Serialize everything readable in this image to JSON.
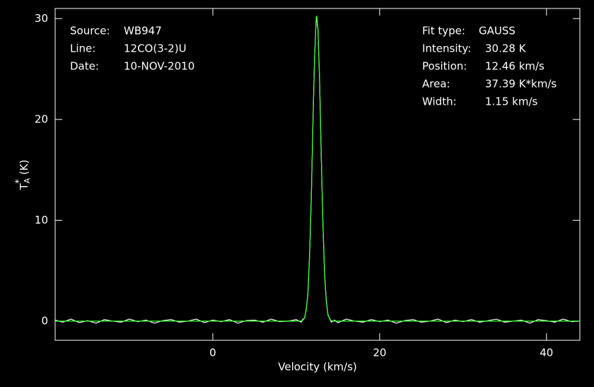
{
  "chart_data": {
    "type": "line",
    "xlabel": "Velocity (km/s)",
    "ylabel": {
      "base": "T",
      "sub": "A",
      "sup": "*",
      "unit": "(K)"
    },
    "xlim": [
      -18.9,
      44
    ],
    "ylim": [
      -1.9,
      31
    ],
    "xticks": [
      0,
      20,
      40
    ],
    "yticks": [
      0,
      10,
      20,
      30
    ],
    "annotations_left": [
      [
        "Source:",
        "WB947"
      ],
      [
        "Line:",
        "12CO(3-2)U"
      ],
      [
        "Date:",
        "10-NOV-2010"
      ]
    ],
    "annotations_right": [
      [
        "Fit type:",
        "GAUSS"
      ],
      [
        "Intensity:",
        "30.28 K"
      ],
      [
        "Position:",
        "12.46 km/s"
      ],
      [
        "Area:",
        "37.39 K*km/s"
      ],
      [
        "Width:",
        "1.15 km/s"
      ]
    ],
    "series": [
      {
        "color": "#ffffff",
        "x": [
          -18.9,
          -18,
          -17,
          -16,
          -15,
          -14,
          -13,
          -12,
          -11,
          -10,
          -9,
          -8,
          -7,
          -6,
          -5,
          -4,
          -3,
          -2,
          -1,
          0,
          1,
          2,
          3,
          4,
          5,
          6,
          7,
          8,
          9,
          10,
          10.6,
          10.8,
          11.0,
          11.2,
          11.4,
          11.6,
          11.8,
          12.0,
          12.2,
          12.4,
          12.6,
          12.8,
          13.0,
          13.2,
          13.4,
          13.6,
          13.8,
          14.0,
          14.2,
          14.6,
          15,
          16,
          17,
          18,
          19,
          20,
          21,
          22,
          23,
          24,
          25,
          26,
          27,
          28,
          29,
          30,
          31,
          32,
          33,
          34,
          35,
          36,
          37,
          38,
          39,
          40,
          41,
          42,
          43,
          44
        ],
        "values": [
          0.1,
          -0.1,
          0.2,
          -0.15,
          0.05,
          -0.2,
          0.15,
          0.0,
          -0.1,
          0.2,
          -0.05,
          0.1,
          -0.2,
          0.05,
          0.15,
          -0.1,
          0.0,
          0.2,
          -0.15,
          0.1,
          -0.05,
          0.15,
          -0.2,
          0.05,
          0.1,
          -0.1,
          0.2,
          -0.05,
          0.0,
          0.15,
          -0.1,
          0.2,
          0.3,
          1.2,
          2.7,
          6.6,
          12.0,
          19.6,
          26.1,
          30.2,
          29.0,
          23.9,
          16.3,
          9.7,
          4.6,
          2.1,
          0.6,
          0.3,
          -0.1,
          0.1,
          -0.15,
          0.2,
          0.0,
          -0.1,
          0.15,
          -0.05,
          0.1,
          -0.2,
          0.05,
          0.15,
          -0.1,
          0.0,
          0.2,
          -0.15,
          0.1,
          -0.05,
          0.15,
          -0.1,
          0.05,
          0.2,
          -0.1,
          0.0,
          0.1,
          -0.2,
          0.15,
          0.05,
          -0.1,
          0.2,
          -0.05,
          0.0
        ]
      },
      {
        "color": "#33ff33",
        "x": [
          -18.9,
          10.0,
          10.6,
          10.8,
          11.0,
          11.2,
          11.4,
          11.6,
          11.8,
          12.0,
          12.2,
          12.4,
          12.46,
          12.6,
          12.8,
          13.0,
          13.2,
          13.4,
          13.6,
          13.8,
          14.0,
          14.2,
          14.6,
          15,
          44
        ],
        "values": [
          0,
          0,
          0.02,
          0.09,
          0.35,
          1.09,
          2.87,
          6.43,
          12.15,
          19.43,
          26.28,
          30.05,
          30.28,
          29.06,
          23.76,
          16.43,
          9.61,
          4.75,
          1.99,
          0.7,
          0.21,
          0.05,
          0,
          0,
          0
        ]
      }
    ]
  }
}
